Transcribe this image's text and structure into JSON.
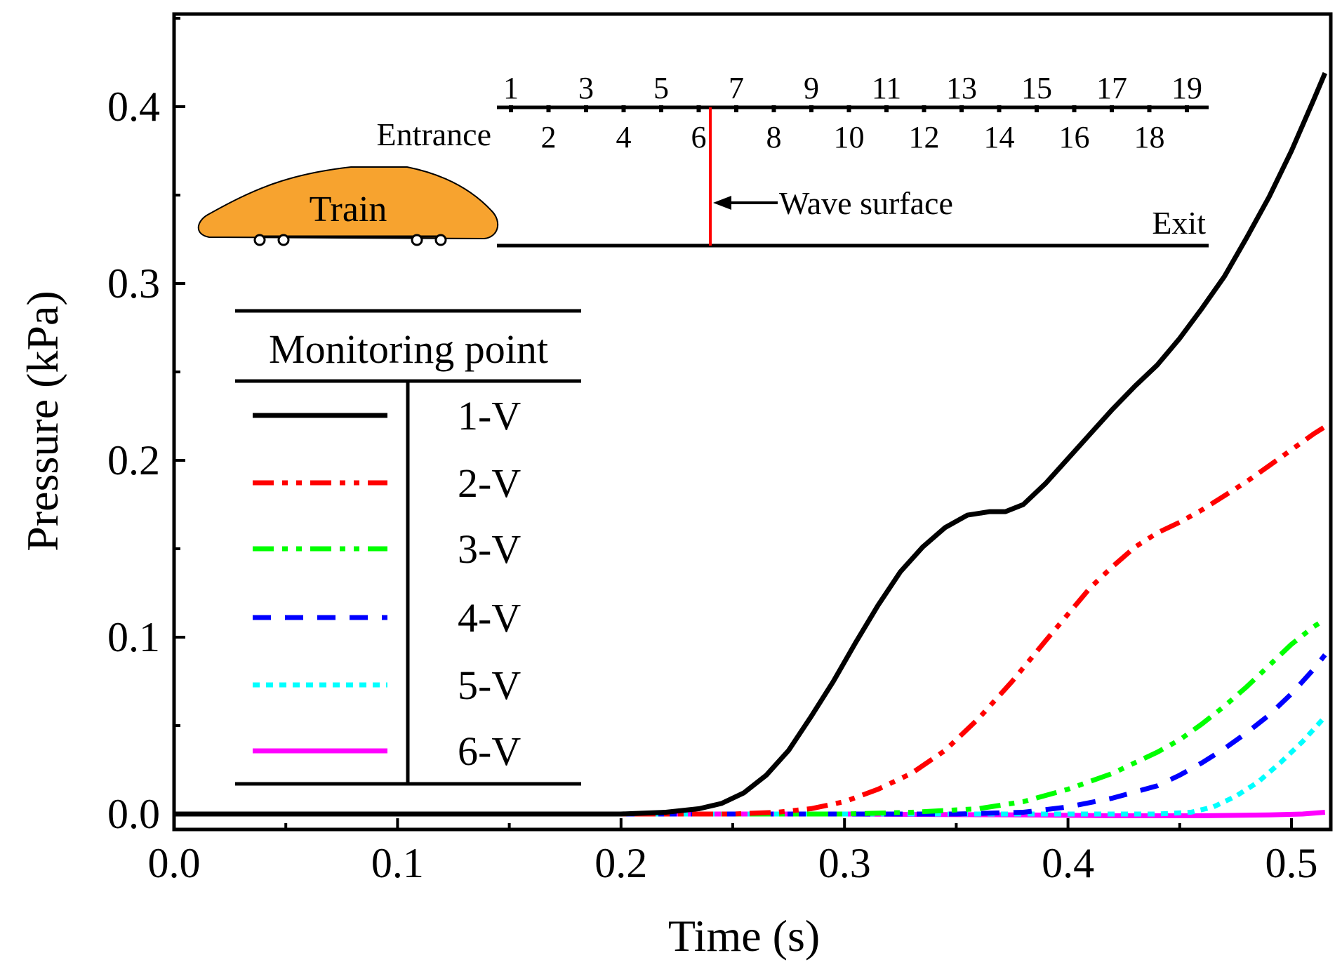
{
  "chart_data": {
    "type": "line",
    "xlabel": "Time (s)",
    "ylabel": "Pressure (kPa)",
    "xlim": [
      0.0,
      0.517
    ],
    "ylim": [
      -0.01,
      0.45
    ],
    "x_ticks": [
      "0.0",
      "0.1",
      "0.2",
      "0.3",
      "0.4",
      "0.5"
    ],
    "y_ticks": [
      "0.0",
      "0.1",
      "0.2",
      "0.3",
      "0.4"
    ],
    "grid": false,
    "legend": {
      "title": "Monitoring point",
      "placement": "left"
    },
    "series": [
      {
        "name": "1-V",
        "color": "#000000",
        "style": "solid",
        "points": [
          [
            0.0,
            0.0
          ],
          [
            0.2,
            0.0
          ],
          [
            0.22,
            0.001
          ],
          [
            0.235,
            0.003
          ],
          [
            0.245,
            0.006
          ],
          [
            0.255,
            0.012
          ],
          [
            0.265,
            0.022
          ],
          [
            0.275,
            0.036
          ],
          [
            0.285,
            0.055
          ],
          [
            0.295,
            0.075
          ],
          [
            0.305,
            0.097
          ],
          [
            0.315,
            0.118
          ],
          [
            0.325,
            0.137
          ],
          [
            0.335,
            0.151
          ],
          [
            0.345,
            0.162
          ],
          [
            0.355,
            0.169
          ],
          [
            0.365,
            0.171
          ],
          [
            0.372,
            0.171
          ],
          [
            0.38,
            0.175
          ],
          [
            0.39,
            0.187
          ],
          [
            0.4,
            0.201
          ],
          [
            0.41,
            0.215
          ],
          [
            0.42,
            0.229
          ],
          [
            0.43,
            0.242
          ],
          [
            0.44,
            0.254
          ],
          [
            0.45,
            0.269
          ],
          [
            0.46,
            0.286
          ],
          [
            0.47,
            0.304
          ],
          [
            0.48,
            0.326
          ],
          [
            0.49,
            0.349
          ],
          [
            0.5,
            0.375
          ],
          [
            0.51,
            0.404
          ],
          [
            0.515,
            0.419
          ]
        ]
      },
      {
        "name": "2-V",
        "color": "#ff0000",
        "style": "dash-dot-dot",
        "points": [
          [
            0.0,
            0.0
          ],
          [
            0.25,
            0.0
          ],
          [
            0.27,
            0.001
          ],
          [
            0.285,
            0.003
          ],
          [
            0.3,
            0.007
          ],
          [
            0.315,
            0.014
          ],
          [
            0.33,
            0.023
          ],
          [
            0.345,
            0.036
          ],
          [
            0.36,
            0.054
          ],
          [
            0.375,
            0.075
          ],
          [
            0.39,
            0.098
          ],
          [
            0.4,
            0.113
          ],
          [
            0.41,
            0.128
          ],
          [
            0.42,
            0.14
          ],
          [
            0.43,
            0.151
          ],
          [
            0.44,
            0.159
          ],
          [
            0.45,
            0.165
          ],
          [
            0.46,
            0.172
          ],
          [
            0.47,
            0.18
          ],
          [
            0.48,
            0.188
          ],
          [
            0.49,
            0.197
          ],
          [
            0.5,
            0.206
          ],
          [
            0.51,
            0.215
          ],
          [
            0.515,
            0.219
          ]
        ]
      },
      {
        "name": "3-V",
        "color": "#00ff00",
        "style": "dash-dot-dot",
        "points": [
          [
            0.0,
            0.0
          ],
          [
            0.3,
            0.0
          ],
          [
            0.33,
            0.001
          ],
          [
            0.36,
            0.003
          ],
          [
            0.38,
            0.007
          ],
          [
            0.4,
            0.014
          ],
          [
            0.42,
            0.023
          ],
          [
            0.44,
            0.035
          ],
          [
            0.45,
            0.042
          ],
          [
            0.46,
            0.051
          ],
          [
            0.47,
            0.061
          ],
          [
            0.48,
            0.072
          ],
          [
            0.49,
            0.084
          ],
          [
            0.5,
            0.096
          ],
          [
            0.51,
            0.106
          ],
          [
            0.515,
            0.11
          ]
        ]
      },
      {
        "name": "4-V",
        "color": "#0000ff",
        "style": "dash",
        "points": [
          [
            0.0,
            0.0
          ],
          [
            0.35,
            0.0
          ],
          [
            0.38,
            0.001
          ],
          [
            0.4,
            0.004
          ],
          [
            0.42,
            0.009
          ],
          [
            0.44,
            0.016
          ],
          [
            0.45,
            0.022
          ],
          [
            0.46,
            0.029
          ],
          [
            0.47,
            0.037
          ],
          [
            0.48,
            0.046
          ],
          [
            0.49,
            0.056
          ],
          [
            0.5,
            0.068
          ],
          [
            0.51,
            0.082
          ],
          [
            0.515,
            0.09
          ]
        ]
      },
      {
        "name": "5-V",
        "color": "#00ffff",
        "style": "dot",
        "points": [
          [
            0.0,
            0.0
          ],
          [
            0.44,
            0.0
          ],
          [
            0.455,
            0.001
          ],
          [
            0.465,
            0.004
          ],
          [
            0.475,
            0.01
          ],
          [
            0.485,
            0.018
          ],
          [
            0.495,
            0.029
          ],
          [
            0.505,
            0.041
          ],
          [
            0.515,
            0.055
          ]
        ]
      },
      {
        "name": "6-V",
        "color": "#ff00ff",
        "style": "solid",
        "points": [
          [
            0.0,
            0.0
          ],
          [
            0.3,
            0.0
          ],
          [
            0.38,
            -0.0005
          ],
          [
            0.42,
            -0.001
          ],
          [
            0.46,
            -0.001
          ],
          [
            0.49,
            -0.0005
          ],
          [
            0.505,
            0.0
          ],
          [
            0.515,
            0.001
          ]
        ]
      }
    ]
  },
  "diagram": {
    "entrance_label": "Entrance",
    "exit_label": "Exit",
    "train_label": "Train",
    "wave_label": "Wave surface",
    "wave_position_between_points": [
      6,
      7
    ],
    "points_odd": [
      "1",
      "3",
      "5",
      "7",
      "9",
      "11",
      "13",
      "15",
      "17",
      "19"
    ],
    "points_even": [
      "2",
      "4",
      "6",
      "8",
      "10",
      "12",
      "14",
      "16",
      "18"
    ],
    "train_color": "#f7a32f"
  }
}
